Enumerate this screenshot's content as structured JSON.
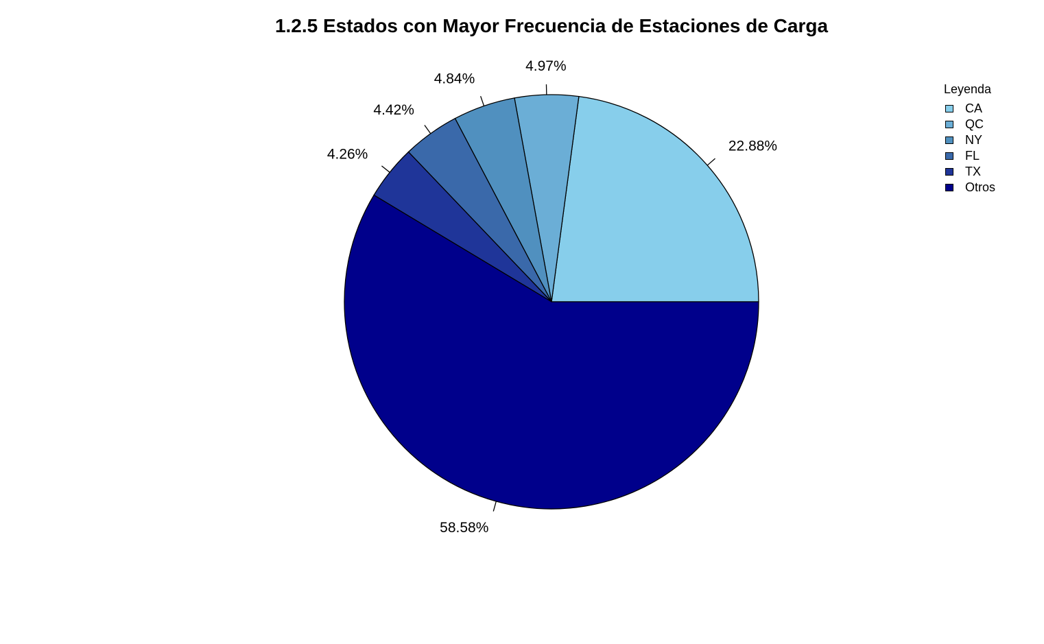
{
  "chart_data": {
    "type": "pie",
    "title": "1.2.5 Estados con Mayor Frecuencia de Estaciones de Carga",
    "legend_title": "Leyenda",
    "legend_position": "top-right",
    "slices": [
      {
        "name": "CA",
        "value": 22.88,
        "label": "22.88%",
        "color": "#87CEEB"
      },
      {
        "name": "QC",
        "value": 4.97,
        "label": "4.97%",
        "color": "#6BAED6"
      },
      {
        "name": "NY",
        "value": 4.84,
        "label": "4.84%",
        "color": "#5090BF"
      },
      {
        "name": "FL",
        "value": 4.42,
        "label": "4.42%",
        "color": "#3A69AA"
      },
      {
        "name": "TX",
        "value": 4.26,
        "label": "4.26%",
        "color": "#1F3599"
      },
      {
        "name": "Otros",
        "value": 58.58,
        "label": "58.58%",
        "color": "#00008B"
      }
    ]
  }
}
